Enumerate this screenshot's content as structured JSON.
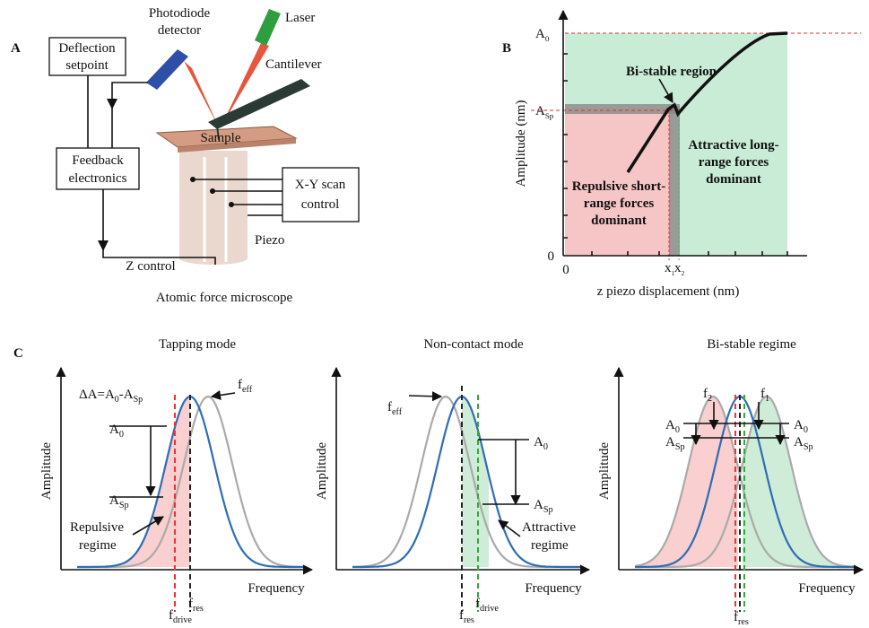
{
  "panel_a": {
    "label": "A",
    "photodiode": [
      "Photodiode",
      "detector"
    ],
    "laser": "Laser",
    "deflection": [
      "Deflection",
      "setpoint"
    ],
    "cantilever": "Cantilever",
    "sample": "Sample",
    "feedback": [
      "Feedback",
      "electronics"
    ],
    "scan": [
      "X-Y scan",
      "control"
    ],
    "piezo": "Piezo",
    "z_control": "Z control",
    "caption": "Atomic force microscope"
  },
  "panel_b": {
    "label": "B",
    "a0": {
      "base": "A",
      "sub": "0"
    },
    "asp": {
      "base": "A",
      "sub": "Sp"
    },
    "bistable": "Bi-stable region",
    "attractive": [
      "Attractive long-",
      "range forces",
      "dominant"
    ],
    "repulsive": [
      "Repulsive short-",
      "range forces",
      "dominant"
    ],
    "y_zero": "0",
    "x_zero": "0",
    "x1": {
      "base": "x",
      "sub": "1"
    },
    "x2": {
      "base": "x",
      "sub": "2"
    },
    "y_label": "Amplitude (nm)",
    "x_label": "z piezo displacement (nm)"
  },
  "panel_c": {
    "label": "C",
    "plots": [
      {
        "title": "Tapping mode",
        "delta": {
          "t1": "ΔA=A",
          "s1": "0",
          "t2": "-A",
          "s2": "Sp"
        },
        "f_eff": {
          "base": "f",
          "sub": "eff"
        },
        "a0": {
          "base": "A",
          "sub": "0"
        },
        "asp": {
          "base": "A",
          "sub": "Sp"
        },
        "regime": [
          "Repulsive",
          "regime"
        ],
        "y_label": "Amplitude",
        "x_label": "Frequency",
        "f_drive": {
          "base": "f",
          "sub": "drive"
        },
        "f_res": {
          "base": "f",
          "sub": "res"
        }
      },
      {
        "title": "Non-contact mode",
        "f_eff": {
          "base": "f",
          "sub": "eff"
        },
        "a0": {
          "base": "A",
          "sub": "0"
        },
        "asp": {
          "base": "A",
          "sub": "Sp"
        },
        "regime": [
          "Attractive",
          "regime"
        ],
        "y_label": "Amplitude",
        "x_label": "Frequency",
        "f_res": {
          "base": "f",
          "sub": "res"
        },
        "f_drive": {
          "base": "f",
          "sub": "drive"
        }
      },
      {
        "title": "Bi-stable regime",
        "f2": {
          "base": "f",
          "sub": "2"
        },
        "f1": {
          "base": "f",
          "sub": "1"
        },
        "a0_left": {
          "base": "A",
          "sub": "0"
        },
        "a0_right": {
          "base": "A",
          "sub": "0"
        },
        "asp_left": {
          "base": "A",
          "sub": "Sp"
        },
        "asp_right": {
          "base": "A",
          "sub": "Sp"
        },
        "y_label": "Amplitude",
        "x_label": "Frequency",
        "f_res": {
          "base": "f",
          "sub": "res"
        }
      }
    ]
  }
}
